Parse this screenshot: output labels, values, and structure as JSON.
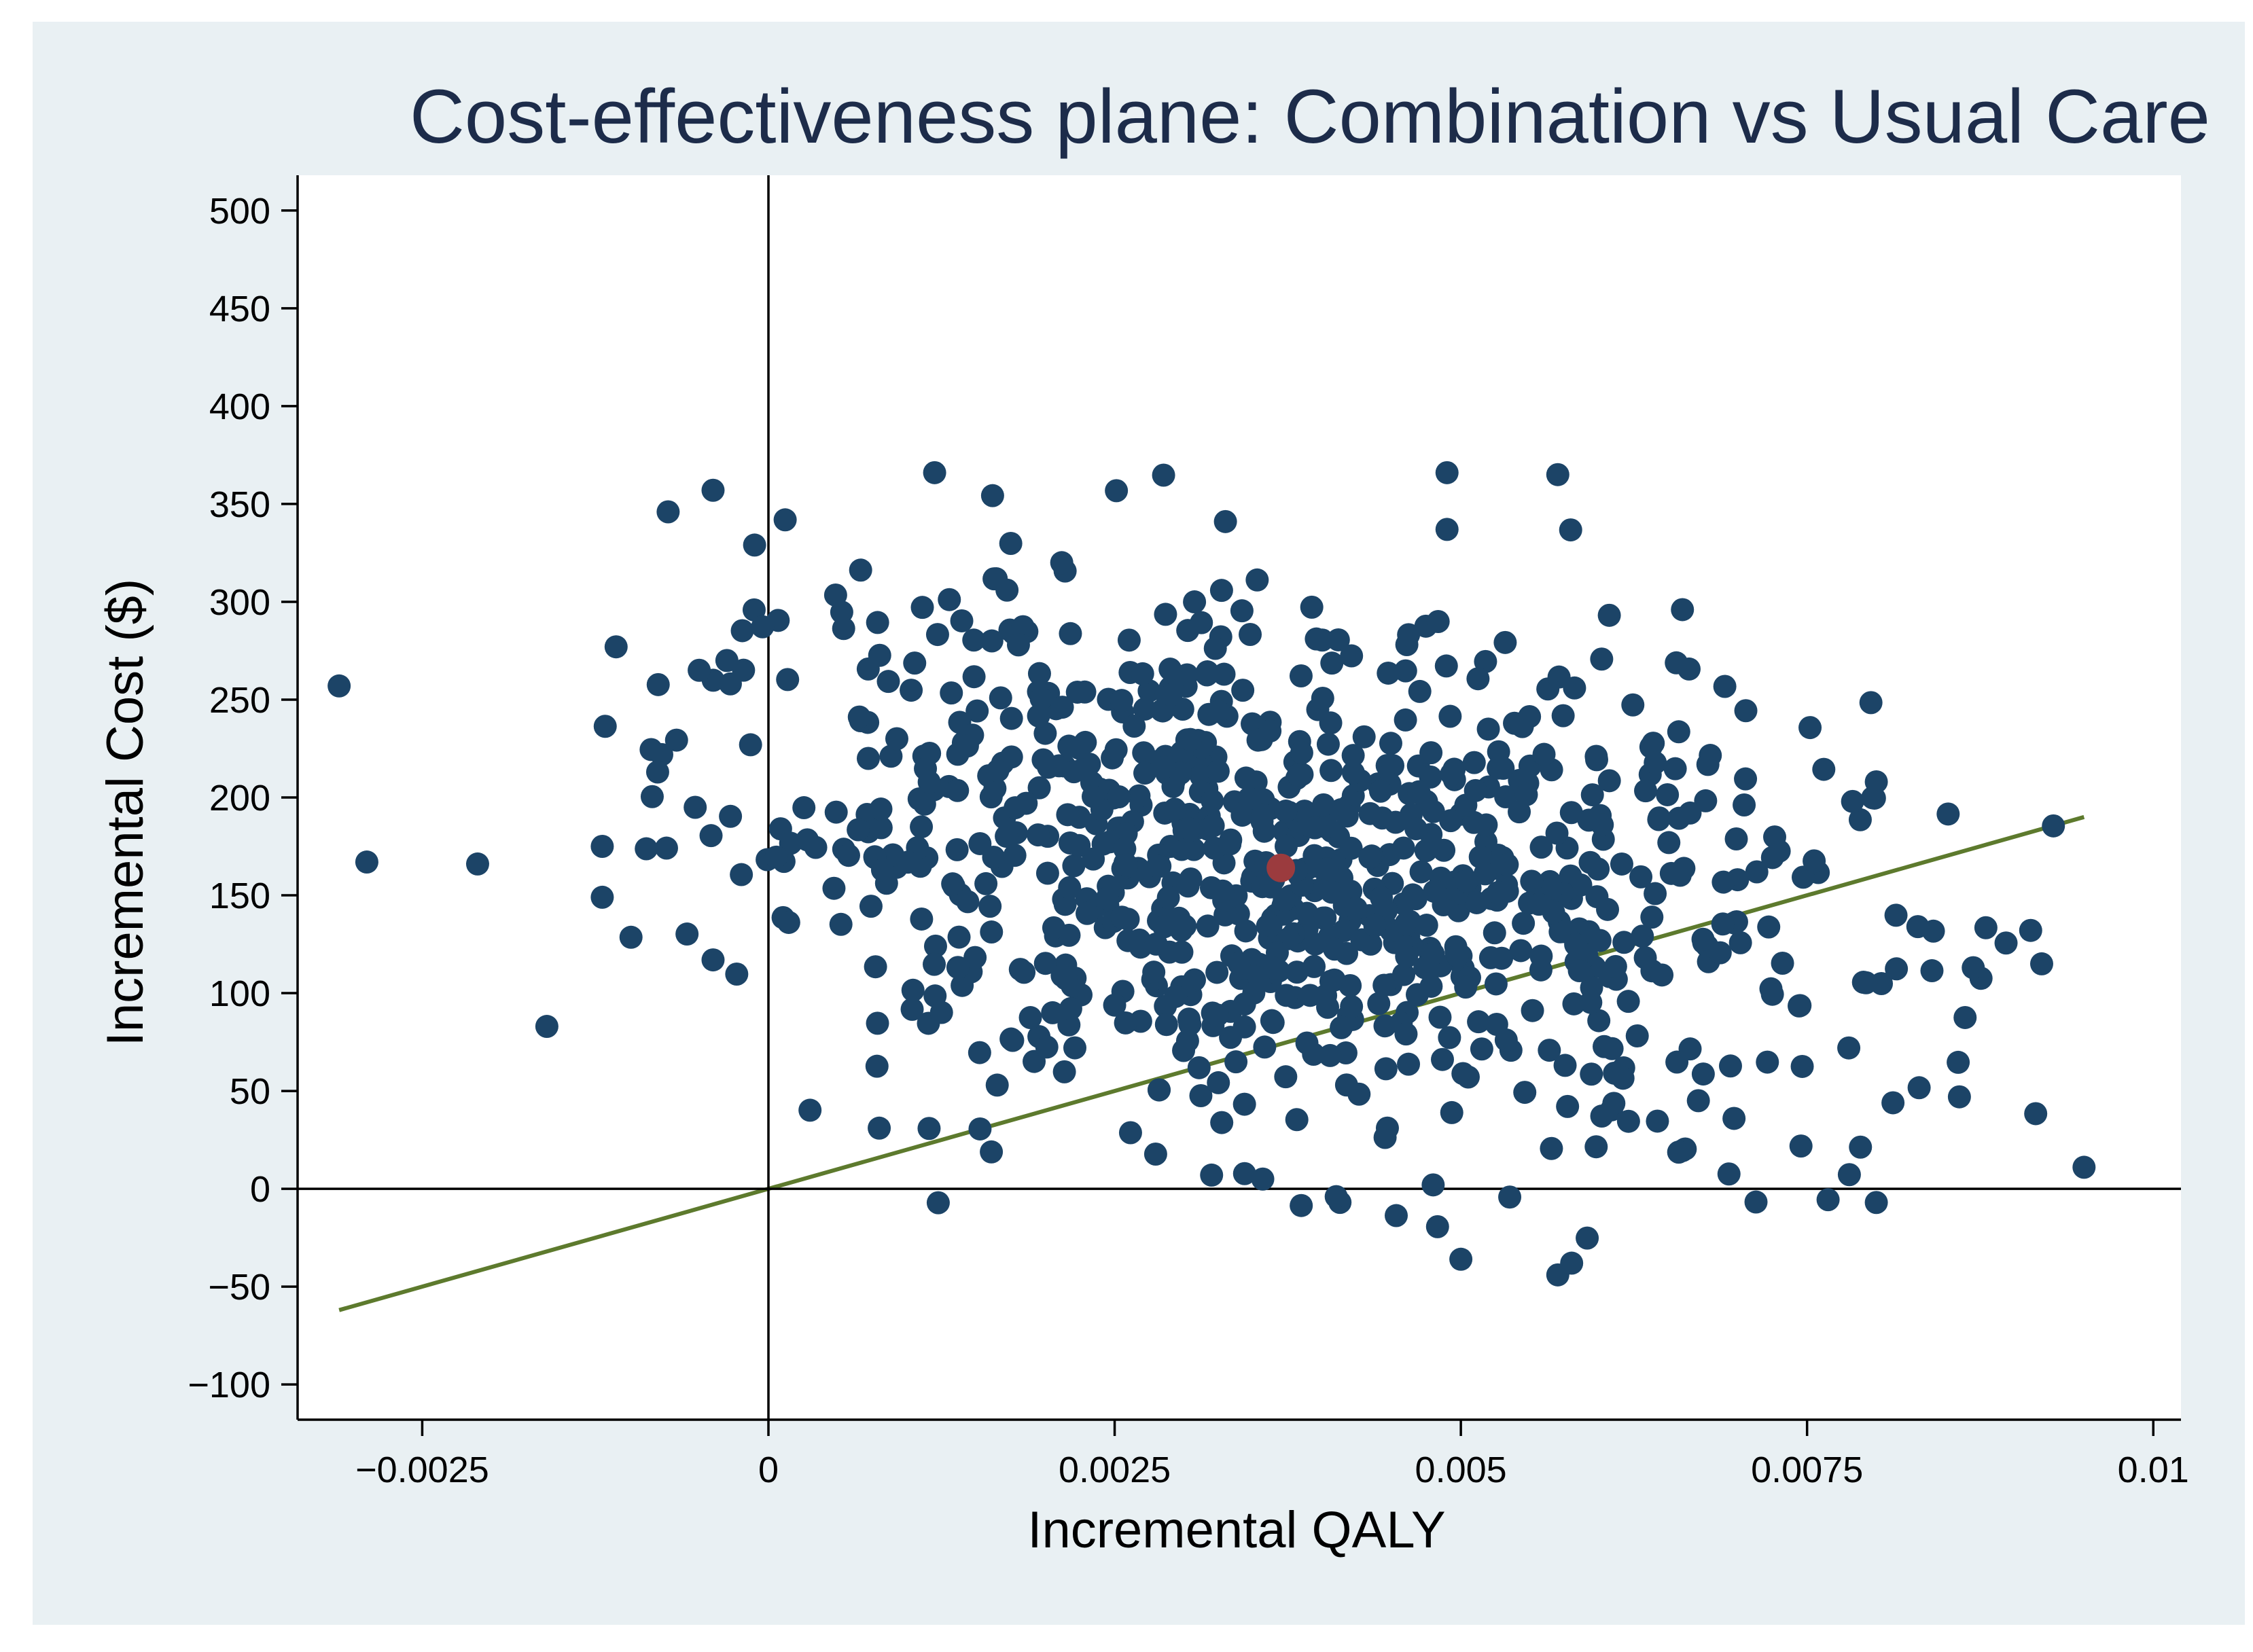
{
  "colors": {
    "outer_background": "#ffffff",
    "frame_background": "#e9f0f3",
    "plot_background": "#ffffff",
    "point_color": "#1c4467",
    "mean_point_color": "#9b3b3e",
    "wtp_line_color": "#5d7a2d",
    "axis_color": "#000000",
    "title_color": "#1d2c4a"
  },
  "chart_data": {
    "type": "scatter",
    "title": "Cost-effectiveness plane: Combination vs Usual Care",
    "xlabel": "Incremental QALY",
    "ylabel": "Incremental Cost ($)",
    "xlim": [
      -0.0034,
      0.0102
    ],
    "ylim": [
      -118,
      518
    ],
    "x_ticks": [
      -0.0025,
      0,
      0.0025,
      0.005,
      0.0075,
      0.01
    ],
    "x_tick_labels": [
      "−0.0025",
      "0",
      "0.0025",
      "0.005",
      "0.0075",
      "0.01"
    ],
    "y_ticks": [
      -100,
      -50,
      0,
      50,
      100,
      150,
      200,
      250,
      300,
      350,
      400,
      450,
      500
    ],
    "y_tick_labels": [
      "−100",
      "−50",
      "0",
      "50",
      "100",
      "150",
      "200",
      "250",
      "300",
      "350",
      "400",
      "450",
      "500"
    ],
    "reference_lines": {
      "x": 0,
      "y": 0
    },
    "wtp_line": {
      "x": [
        -0.0031,
        0.0095
      ],
      "y": [
        -62,
        190
      ]
    },
    "mean_point": {
      "x": 0.0037,
      "y": 164
    },
    "n_simulated_points": 900,
    "notable_points": [
      {
        "x": -0.0031,
        "y": 257
      },
      {
        "x": -0.0029,
        "y": 167
      },
      {
        "x": -0.0021,
        "y": 166
      },
      {
        "x": -0.0016,
        "y": 83
      },
      {
        "x": -0.0012,
        "y": 149
      },
      {
        "x": -0.0012,
        "y": 175
      },
      {
        "x": -0.0011,
        "y": 277
      },
      {
        "x": -0.0008,
        "y": 213
      },
      {
        "x": -0.0005,
        "y": 265
      },
      {
        "x": -0.0004,
        "y": 357
      },
      {
        "x": -0.0004,
        "y": 117
      },
      {
        "x": -0.0003,
        "y": 270
      },
      {
        "x": -0.0001,
        "y": 329
      },
      {
        "x": 0.0012,
        "y": 366
      },
      {
        "x": 0.0049,
        "y": 366
      },
      {
        "x": 0.0057,
        "y": 365
      },
      {
        "x": 0.0049,
        "y": 337
      },
      {
        "x": 0.0033,
        "y": 341
      },
      {
        "x": 0.0066,
        "y": 296
      },
      {
        "x": 0.008,
        "y": 208
      },
      {
        "x": 0.0083,
        "y": 134
      },
      {
        "x": 0.0087,
        "y": 113
      },
      {
        "x": 0.0095,
        "y": 11
      },
      {
        "x": 0.008,
        "y": -7
      },
      {
        "x": 0.0086,
        "y": 47
      },
      {
        "x": 0.005,
        "y": -36
      },
      {
        "x": 0.0057,
        "y": -44
      },
      {
        "x": 0.0058,
        "y": -38
      },
      {
        "x": 0.0041,
        "y": -4
      },
      {
        "x": 0.0032,
        "y": 7
      },
      {
        "x": 0.0008,
        "y": 31
      },
      {
        "x": 0.0048,
        "y": 2
      }
    ]
  }
}
